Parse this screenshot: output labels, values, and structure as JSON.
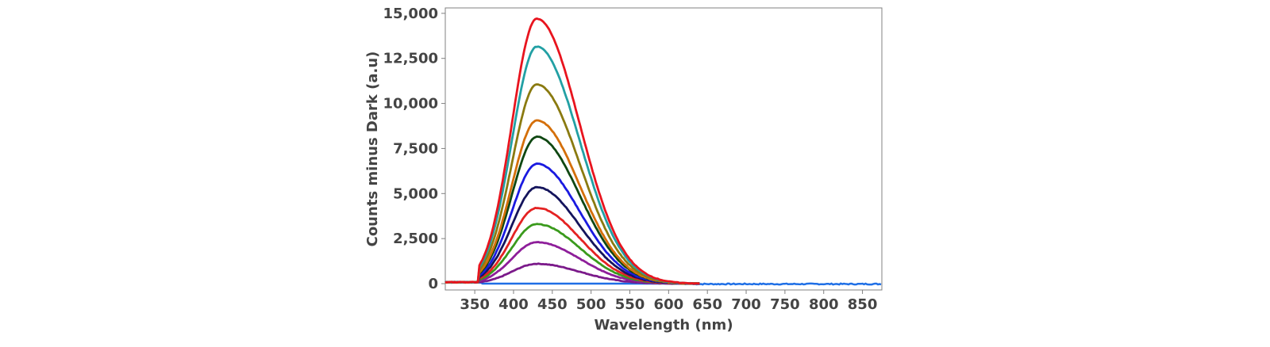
{
  "chart_data": {
    "type": "line",
    "title": "",
    "xlabel": "Wavelength (nm)",
    "ylabel": "Counts minus Dark (a.u)",
    "xlim": [
      312,
      875
    ],
    "ylim": [
      -350,
      15300
    ],
    "x_ticks": [
      350,
      400,
      450,
      500,
      550,
      600,
      650,
      700,
      750,
      800,
      850
    ],
    "x_tick_labels": [
      "350",
      "400",
      "450",
      "500",
      "550",
      "600",
      "650",
      "700",
      "750",
      "800",
      "850"
    ],
    "y_ticks": [
      0,
      2500,
      5000,
      7500,
      10000,
      12500,
      15000
    ],
    "y_tick_labels": [
      "0",
      "2,500",
      "5,000",
      "7,500",
      "10,000",
      "12,500",
      "15,000"
    ],
    "grid": false,
    "legend": "none",
    "peak_wavelength": 430,
    "series": [
      {
        "color": "#7b1a8a",
        "peak": 1100
      },
      {
        "color": "#8e1e9a",
        "peak": 2300
      },
      {
        "color": "#3a9a1c",
        "peak": 3300
      },
      {
        "color": "#e42222",
        "peak": 4200
      },
      {
        "color": "#14145c",
        "peak": 5350
      },
      {
        "color": "#1a1ae0",
        "peak": 6650
      },
      {
        "color": "#0f4712",
        "peak": 8150
      },
      {
        "color": "#d46f0a",
        "peak": 9050
      },
      {
        "color": "#8a7a10",
        "peak": 11050
      },
      {
        "color": "#22a0a4",
        "peak": 13150
      },
      {
        "color": "#e8141e",
        "peak": 14700
      }
    ],
    "baseline": {
      "color": "#1f6fe6",
      "value": 0
    }
  }
}
